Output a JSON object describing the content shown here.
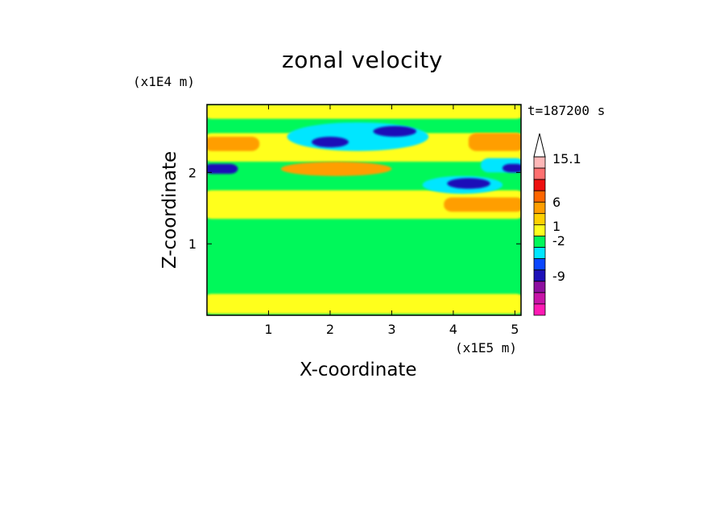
{
  "chart_data": {
    "type": "heatmap",
    "title": "zonal velocity",
    "xlabel": "X-coordinate",
    "ylabel": "Z-coordinate",
    "x_unit_label": "(x1E5 m)",
    "y_unit_label": "(x1E4 m)",
    "timestamp": "t=187200 s",
    "xlim": [
      0,
      5.1
    ],
    "ylim": [
      0,
      2.95
    ],
    "x_ticks": [
      "1",
      "2",
      "3",
      "4",
      "5"
    ],
    "y_ticks": [
      "1",
      "2"
    ],
    "colorbar": {
      "levels": [
        {
          "color": "#ff1ab4"
        },
        {
          "color": "#c814a8"
        },
        {
          "color": "#8e0fa0"
        },
        {
          "color": "#1d10b8"
        },
        {
          "color": "#0a46ff"
        },
        {
          "color": "#00e6ff"
        },
        {
          "color": "#00f85a"
        },
        {
          "color": "#ffff1e"
        },
        {
          "color": "#ffd000"
        },
        {
          "color": "#ff9e00"
        },
        {
          "color": "#ff6600"
        },
        {
          "color": "#ee1010"
        },
        {
          "color": "#ff7070"
        },
        {
          "color": "#ffb8b8"
        }
      ],
      "labels": [
        "15.1",
        "6",
        "1",
        "-2",
        "-9"
      ],
      "extend": "max"
    },
    "field": {
      "background": "#00f85a",
      "regions": [
        {
          "level": "yellow",
          "x0": 0,
          "x1": 5.1,
          "z0": 2.75,
          "z1": 2.95
        },
        {
          "level": "yellow",
          "x0": 0,
          "x1": 5.1,
          "z0": 2.15,
          "z1": 2.55
        },
        {
          "level": "yellow",
          "x0": 0,
          "x1": 5.1,
          "z0": 1.35,
          "z1": 1.75
        },
        {
          "level": "yellow",
          "x0": 0,
          "x1": 5.1,
          "z0": 0.02,
          "z1": 0.3
        },
        {
          "level": "orange",
          "x0": 0.0,
          "x1": 0.8,
          "z0": 2.3,
          "z1": 2.5
        },
        {
          "level": "orange",
          "x0": 4.3,
          "x1": 5.1,
          "z0": 2.3,
          "z1": 2.55
        },
        {
          "level": "orange",
          "x0": 1.2,
          "x1": 3.0,
          "z0": 1.95,
          "z1": 2.15
        },
        {
          "level": "orange",
          "x0": 3.9,
          "x1": 5.1,
          "z0": 1.45,
          "z1": 1.65
        },
        {
          "level": "cyan",
          "x0": 1.3,
          "x1": 3.6,
          "z0": 2.3,
          "z1": 2.7
        },
        {
          "level": "cyan",
          "x0": 3.5,
          "x1": 4.8,
          "z0": 1.7,
          "z1": 1.95
        },
        {
          "level": "cyan",
          "x0": 4.5,
          "x1": 5.1,
          "z0": 2.0,
          "z1": 2.2
        },
        {
          "level": "blue",
          "x0": 1.7,
          "x1": 2.3,
          "z0": 2.35,
          "z1": 2.5
        },
        {
          "level": "blue",
          "x0": 2.7,
          "x1": 3.4,
          "z0": 2.5,
          "z1": 2.65
        },
        {
          "level": "blue",
          "x0": 0.0,
          "x1": 0.45,
          "z0": 1.98,
          "z1": 2.12
        },
        {
          "level": "blue",
          "x0": 3.9,
          "x1": 4.6,
          "z0": 1.77,
          "z1": 1.92
        },
        {
          "level": "blue",
          "x0": 4.85,
          "x1": 5.1,
          "z0": 2.0,
          "z1": 2.12
        }
      ]
    }
  }
}
